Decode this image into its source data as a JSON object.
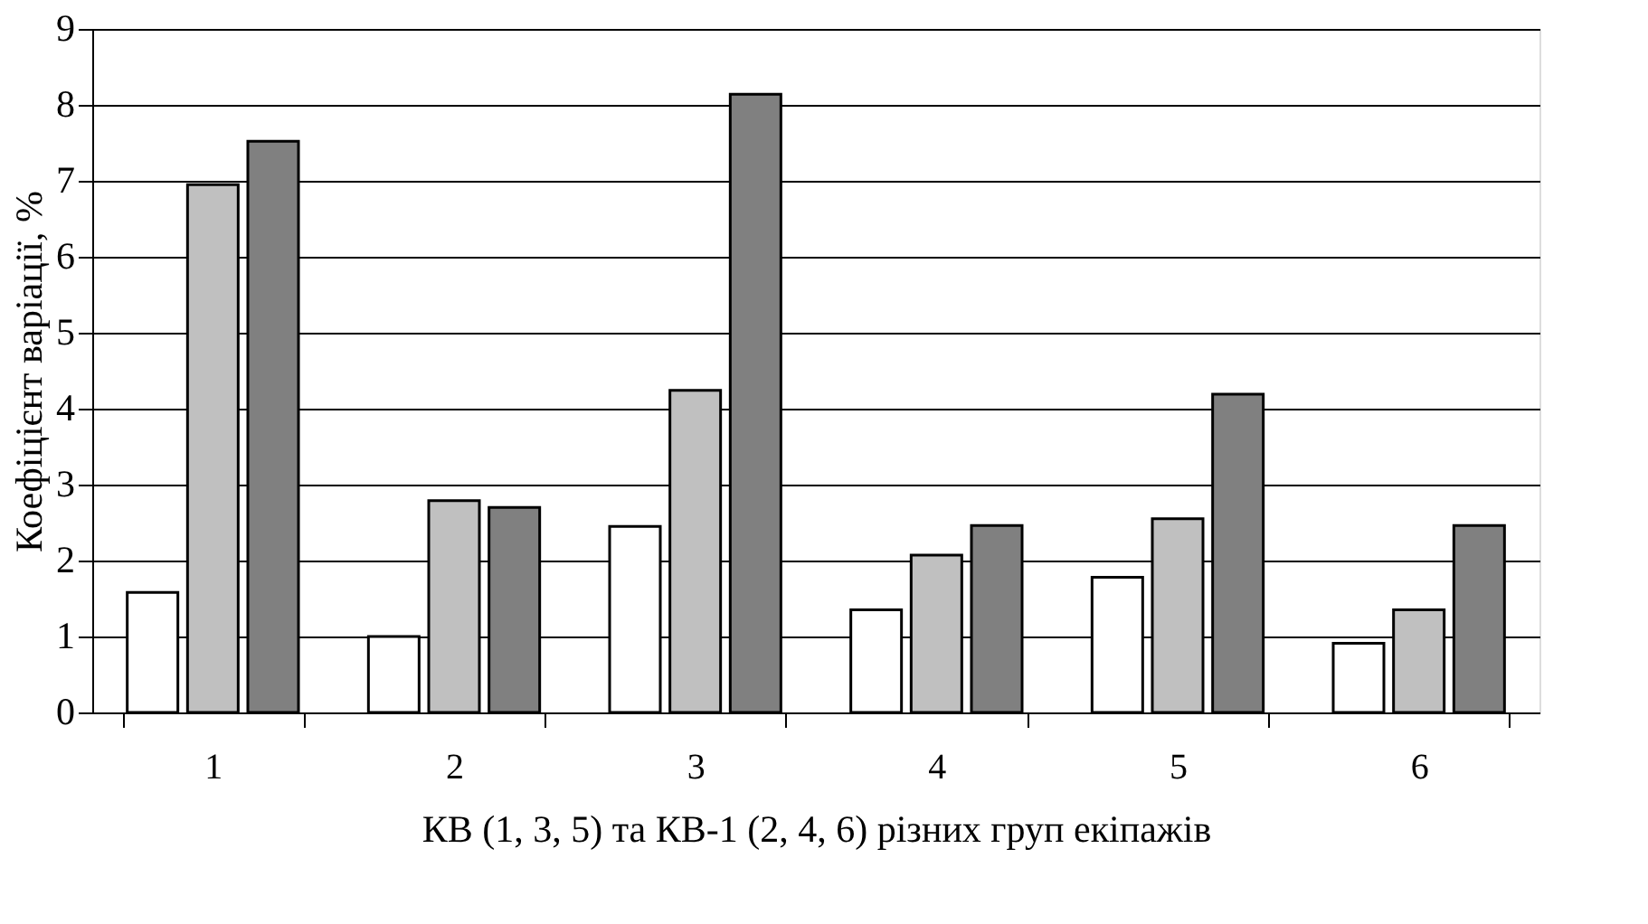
{
  "chart_data": {
    "type": "bar",
    "xlabel": "КВ (1, 3, 5) та КВ-1 (2, 4, 6) різних груп екіпажів",
    "ylabel": "Коефіцієнт варіації, %",
    "categories": [
      "1",
      "2",
      "3",
      "4",
      "5",
      "6"
    ],
    "series": [
      {
        "color": "#ffffff",
        "values": [
          1.58,
          1.0,
          2.45,
          1.35,
          1.78,
          0.91
        ]
      },
      {
        "color": "#c0c0c0",
        "values": [
          6.95,
          2.79,
          4.24,
          2.07,
          2.55,
          1.35
        ]
      },
      {
        "color": "#808080",
        "values": [
          7.52,
          2.7,
          8.14,
          2.46,
          4.19,
          2.46
        ]
      }
    ],
    "ylim": [
      0,
      9
    ],
    "yticks": [
      0,
      1,
      2,
      3,
      4,
      5,
      6,
      7,
      8,
      9
    ],
    "grid": "y",
    "legend": false
  }
}
